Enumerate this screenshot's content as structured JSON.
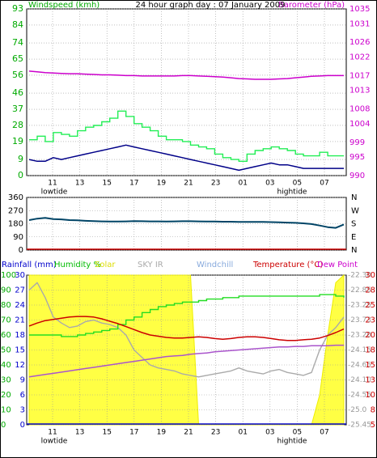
{
  "chart_data": [
    {
      "type": "line",
      "title": "24 hour graph day : 07 January 2009",
      "x_ticks": [
        "11",
        "13",
        "15",
        "17",
        "19",
        "21",
        "23",
        "01",
        "03",
        "05",
        "07"
      ],
      "left_axis": {
        "label": "Windspeed (kmh)",
        "ticks": [
          93,
          84,
          74,
          65,
          56,
          46,
          37,
          28,
          19,
          9,
          0
        ],
        "ylim": [
          0,
          93
        ]
      },
      "right_axis": {
        "label": "Barometer (hPa)",
        "ticks": [
          1035,
          1031,
          1026,
          1022,
          1017,
          1013,
          1008,
          1004,
          999,
          995,
          990
        ],
        "ylim": [
          990,
          1035
        ]
      },
      "annotations": [
        "lowtide",
        "hightide"
      ],
      "colors": {
        "windspeed_gust": "#22ee55",
        "windspeed_avg": "#000088",
        "barometer": "#cc00cc",
        "left_axis": "#00aa00",
        "right_axis": "#cc00cc"
      },
      "series": [
        {
          "name": "Windspeed (kmh)",
          "axis": "left",
          "values": [
            9,
            8,
            8,
            10,
            9,
            10,
            11,
            12,
            13,
            14,
            15,
            16,
            17,
            16,
            15,
            14,
            13,
            12,
            11,
            10,
            9,
            8,
            7,
            6,
            5,
            4,
            3,
            4,
            5,
            6,
            7,
            6,
            6,
            5,
            4,
            4,
            4,
            4,
            4,
            4
          ]
        },
        {
          "name": "Windspeed (kmh) gust",
          "axis": "left",
          "values": [
            20,
            22,
            19,
            24,
            23,
            22,
            25,
            27,
            28,
            30,
            32,
            36,
            33,
            29,
            27,
            25,
            22,
            20,
            20,
            19,
            17,
            16,
            15,
            12,
            10,
            9,
            8,
            12,
            14,
            15,
            16,
            15,
            14,
            12,
            11,
            11,
            13,
            11,
            11,
            11
          ]
        },
        {
          "name": "Barometer (hPa)",
          "axis": "right",
          "values": [
            1018.2,
            1018.0,
            1017.8,
            1017.7,
            1017.6,
            1017.5,
            1017.5,
            1017.4,
            1017.3,
            1017.2,
            1017.2,
            1017.1,
            1017.0,
            1017.0,
            1016.9,
            1016.9,
            1016.9,
            1016.9,
            1016.9,
            1017.0,
            1017.0,
            1016.9,
            1016.8,
            1016.7,
            1016.6,
            1016.4,
            1016.2,
            1016.1,
            1016.0,
            1016.0,
            1016.0,
            1016.1,
            1016.2,
            1016.4,
            1016.6,
            1016.8,
            1016.9,
            1017.0,
            1017.0,
            1017.0
          ]
        }
      ]
    },
    {
      "type": "line",
      "x_ticks": [
        "11",
        "13",
        "15",
        "17",
        "19",
        "21",
        "23",
        "01",
        "03",
        "05",
        "07"
      ],
      "left_axis": {
        "ticks": [
          360,
          270,
          180,
          90,
          0
        ],
        "ylim": [
          0,
          360
        ]
      },
      "right_axis": {
        "ticks": [
          "N",
          "W",
          "S",
          "E",
          "N"
        ]
      },
      "colors": {
        "direction": "#004466",
        "baseline": "#cc0000"
      },
      "series": [
        {
          "name": "Wind direction",
          "axis": "left",
          "values": [
            205,
            215,
            220,
            212,
            210,
            205,
            203,
            200,
            198,
            196,
            195,
            195,
            196,
            198,
            197,
            196,
            196,
            195,
            196,
            197,
            197,
            196,
            195,
            195,
            194,
            194,
            193,
            193,
            192,
            192,
            191,
            190,
            188,
            186,
            183,
            178,
            168,
            157,
            152,
            175
          ]
        }
      ]
    },
    {
      "type": "line",
      "x_ticks": [
        "11",
        "13",
        "15",
        "17",
        "19",
        "21",
        "23",
        "01",
        "03",
        "05",
        "07"
      ],
      "annotations": [
        "lowtide",
        "hightide"
      ],
      "header_labels": [
        {
          "text": "Rainfall (mm)",
          "color": "#0000cc"
        },
        {
          "text": "Humidity %",
          "color": "#00bb00"
        },
        {
          "text": "Solar",
          "color": "#dddd00"
        },
        {
          "text": "SKY IR",
          "color": "#aaaaaa"
        },
        {
          "text": "Windchill",
          "color": "#88aadd"
        },
        {
          "text": "Temperature (°C)",
          "color": "#cc0000"
        },
        {
          "text": "Dew Point",
          "color": "#cc00cc"
        }
      ],
      "axes": {
        "rainfall_humidity": {
          "ticks": [
            100,
            90,
            80,
            70,
            60,
            50,
            40,
            30,
            20,
            10,
            0
          ],
          "ylim": [
            0,
            100
          ]
        },
        "rainfall_mm": {
          "ticks": [
            30,
            27,
            24,
            21,
            18,
            15,
            12,
            9,
            6,
            3,
            0
          ],
          "ylim": [
            0,
            30
          ]
        },
        "sky_ir": {
          "ticks": [
            "-22.30",
            "-22.85",
            "-23.25",
            "-23.73",
            "-23.20",
            "-24.15",
            "-24.65",
            "-24.10",
            "-24.55",
            "-25.0",
            "-25.45"
          ]
        },
        "temperature": {
          "ticks": [
            30,
            28,
            25,
            23,
            20,
            18,
            15,
            13,
            10,
            8,
            5
          ],
          "ylim": [
            5,
            30
          ]
        }
      },
      "series": [
        {
          "name": "Humidity %",
          "axis": "rainfall_humidity",
          "values": [
            60,
            60,
            60,
            60,
            59,
            59,
            60,
            61,
            62,
            63,
            64,
            67,
            70,
            72,
            75,
            77,
            79,
            80,
            81,
            82,
            82,
            83,
            84,
            84,
            85,
            85,
            86,
            86,
            86,
            86,
            86,
            86,
            86,
            86,
            86,
            86,
            87,
            87,
            86,
            85
          ]
        },
        {
          "name": "Temperature (°C)",
          "axis": "temperature",
          "values": [
            21.5,
            22.0,
            22.4,
            22.6,
            22.8,
            23.0,
            23.1,
            23.1,
            23.0,
            22.7,
            22.3,
            21.9,
            21.4,
            20.9,
            20.4,
            20.0,
            19.8,
            19.6,
            19.5,
            19.5,
            19.6,
            19.7,
            19.6,
            19.4,
            19.3,
            19.4,
            19.6,
            19.7,
            19.7,
            19.6,
            19.4,
            19.2,
            19.1,
            19.1,
            19.2,
            19.3,
            19.5,
            19.9,
            20.4,
            21.0
          ]
        },
        {
          "name": "Dew Point",
          "axis": "temperature",
          "values": [
            13.0,
            13.2,
            13.4,
            13.6,
            13.8,
            14.0,
            14.2,
            14.4,
            14.6,
            14.8,
            15.0,
            15.2,
            15.4,
            15.6,
            15.8,
            16.0,
            16.2,
            16.4,
            16.5,
            16.6,
            16.8,
            16.9,
            17.0,
            17.2,
            17.3,
            17.4,
            17.5,
            17.6,
            17.7,
            17.8,
            17.9,
            18.0,
            18.0,
            18.1,
            18.1,
            18.2,
            18.2,
            18.2,
            18.3,
            18.3
          ]
        },
        {
          "name": "SKY IR",
          "axis": "rainfall_humidity",
          "values": [
            90,
            95,
            85,
            72,
            68,
            65,
            66,
            69,
            70,
            68,
            67,
            65,
            60,
            50,
            45,
            40,
            38,
            37,
            36,
            34,
            33,
            32,
            33,
            34,
            35,
            36,
            38,
            36,
            35,
            34,
            36,
            37,
            35,
            34,
            33,
            35,
            50,
            60,
            65,
            72
          ]
        },
        {
          "name": "Solar",
          "axis": "rainfall_humidity",
          "values": [
            100,
            100,
            100,
            100,
            100,
            100,
            100,
            100,
            100,
            100,
            100,
            100,
            100,
            100,
            100,
            100,
            100,
            100,
            100,
            100,
            100,
            0,
            0,
            0,
            0,
            0,
            0,
            0,
            0,
            0,
            0,
            0,
            0,
            0,
            0,
            0,
            20,
            60,
            95,
            100
          ]
        },
        {
          "name": "Rainfall (mm)",
          "axis": "rainfall_mm",
          "values": [
            0,
            0,
            0,
            0,
            0,
            0,
            0,
            0,
            0,
            0,
            0,
            0,
            0,
            0,
            0,
            0,
            0,
            0,
            0,
            0,
            0,
            0,
            0,
            0,
            0,
            0,
            0,
            0,
            0,
            0,
            0,
            0,
            0,
            0,
            0,
            0,
            0,
            0,
            0,
            0
          ]
        }
      ]
    }
  ]
}
